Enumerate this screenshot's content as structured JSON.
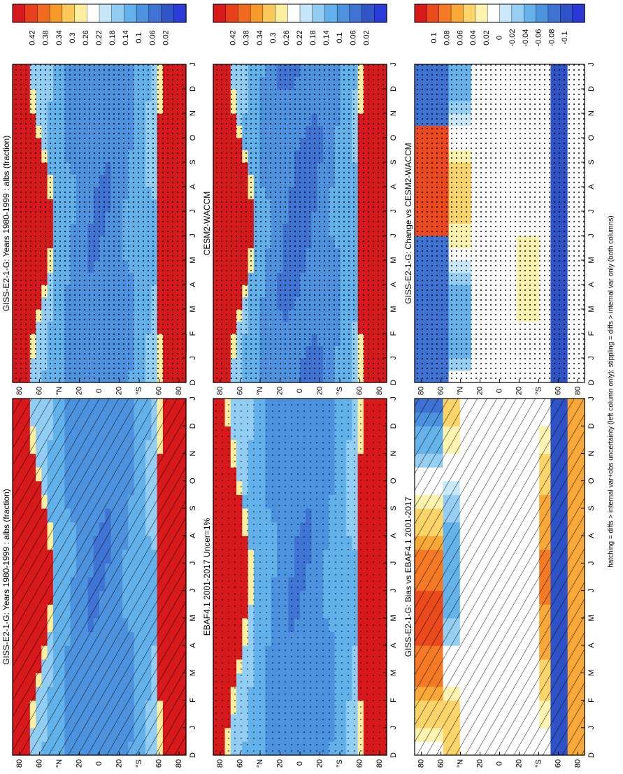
{
  "footnote": "hatching = diffs > internal var+obs uncertainty (left column only); stippling = diffs > internal var only (both columns)",
  "months": [
    "D",
    "J",
    "F",
    "M",
    "A",
    "M",
    "J",
    "J",
    "A",
    "S",
    "O",
    "N",
    "D",
    "J"
  ],
  "lat_ticks": [
    "80",
    "60",
    "°N",
    "20",
    "0",
    "20",
    "°S",
    "60",
    "80"
  ],
  "colors": {
    "abs": [
      "#d7191c",
      "#e8401a",
      "#f06a1f",
      "#f79a2a",
      "#fcc85a",
      "#fdeea0",
      "#ffffff",
      "#c6e6fa",
      "#92cdf3",
      "#63b1ea",
      "#4d92df",
      "#3f74d4",
      "#3056c8",
      "#2b3dd9"
    ],
    "diff": [
      "#d7191c",
      "#ea4a1c",
      "#f47a25",
      "#faa838",
      "#fdd46a",
      "#fff3b0",
      "#ffffff",
      "#c9e8fb",
      "#96cff3",
      "#66b2ea",
      "#4c93df",
      "#3e72d3",
      "#2f52c6",
      "#2a37d6"
    ]
  },
  "chart_data": [
    {
      "type": "heatmap",
      "title": "GISS-E2-1-G: Years 1980-1999 : albs (fraction)",
      "x": [
        "D",
        "J",
        "F",
        "M",
        "A",
        "M",
        "J",
        "J",
        "A",
        "S",
        "O",
        "N",
        "D",
        "J"
      ],
      "y_ticks": [
        "80",
        "60",
        "°N",
        "20",
        "0",
        "20",
        "°S",
        "60",
        "80"
      ],
      "colorbar_ticks": [
        "0.42",
        "0.38",
        "0.34",
        "0.3",
        "0.26",
        "0.22",
        "0.18",
        "0.14",
        "0.1",
        "0.06",
        "0.02"
      ],
      "kind": "abs",
      "variant": 1,
      "overlay": "hatch"
    },
    {
      "type": "heatmap",
      "title": "EBAF4.1 2001-2017 Uncer=1%",
      "x": [
        "D",
        "J",
        "F",
        "M",
        "A",
        "M",
        "J",
        "J",
        "A",
        "S",
        "O",
        "N",
        "D",
        "J"
      ],
      "y_ticks": [
        "80",
        "60",
        "°N",
        "20",
        "0",
        "20",
        "°S",
        "60",
        "80"
      ],
      "colorbar_ticks": [
        "0.42",
        "0.38",
        "0.34",
        "0.3",
        "0.26",
        "0.22",
        "0.18",
        "0.14",
        "0.1",
        "0.06",
        "0.02"
      ],
      "kind": "abs",
      "variant": 2,
      "overlay": "sparse"
    },
    {
      "type": "heatmap",
      "title": "GISS-E2-1-G: Bias vs EBAF4.1 2001-2017",
      "x": [
        "D",
        "J",
        "F",
        "M",
        "A",
        "M",
        "J",
        "J",
        "A",
        "S",
        "O",
        "N",
        "D",
        "J"
      ],
      "y_ticks": [
        "80",
        "60",
        "°N",
        "20",
        "0",
        "20",
        "°S",
        "60",
        "80"
      ],
      "colorbar_ticks": [
        "0.1",
        "0.08",
        "0.06",
        "0.04",
        "0.02",
        "0",
        "-0.02",
        "-0.04",
        "-0.06",
        "-0.08",
        "-0.1"
      ],
      "kind": "diff",
      "variant": 1,
      "overlay": "hatch"
    },
    {
      "type": "heatmap",
      "title": "GISS-E2-1-G: Years 1980-1999 : albs (fraction)",
      "x": [
        "D",
        "J",
        "F",
        "M",
        "A",
        "M",
        "J",
        "J",
        "A",
        "S",
        "O",
        "N",
        "D",
        "J"
      ],
      "y_ticks": [
        "80",
        "60",
        "°N",
        "20",
        "0",
        "20",
        "°S",
        "60",
        "80"
      ],
      "colorbar_ticks": [
        "0.42",
        "0.38",
        "0.34",
        "0.3",
        "0.26",
        "0.22",
        "0.18",
        "0.14",
        "0.1",
        "0.06",
        "0.02"
      ],
      "kind": "abs",
      "variant": 1,
      "overlay": "dots"
    },
    {
      "type": "heatmap",
      "title": "CESM2-WACCM",
      "x": [
        "D",
        "J",
        "F",
        "M",
        "A",
        "M",
        "J",
        "J",
        "A",
        "S",
        "O",
        "N",
        "D",
        "J"
      ],
      "y_ticks": [
        "80",
        "60",
        "°N",
        "20",
        "0",
        "20",
        "°S",
        "60",
        "80"
      ],
      "colorbar_ticks": [
        "0.42",
        "0.38",
        "0.34",
        "0.3",
        "0.26",
        "0.22",
        "0.18",
        "0.14",
        "0.1",
        "0.06",
        "0.02"
      ],
      "kind": "abs",
      "variant": 3,
      "overlay": "dots"
    },
    {
      "type": "heatmap",
      "title": "GISS-E2-1-G: Change vs CESM2-WACCM",
      "x": [
        "D",
        "J",
        "F",
        "M",
        "A",
        "M",
        "J",
        "J",
        "A",
        "S",
        "O",
        "N",
        "D",
        "J"
      ],
      "y_ticks": [
        "80",
        "60",
        "°N",
        "20",
        "0",
        "20",
        "°S",
        "60",
        "80"
      ],
      "colorbar_ticks": [
        "0.1",
        "0.08",
        "0.06",
        "0.04",
        "0.02",
        "0",
        "-0.02",
        "-0.04",
        "-0.06",
        "-0.08",
        "-0.1"
      ],
      "kind": "diff",
      "variant": 2,
      "overlay": "dots"
    }
  ]
}
